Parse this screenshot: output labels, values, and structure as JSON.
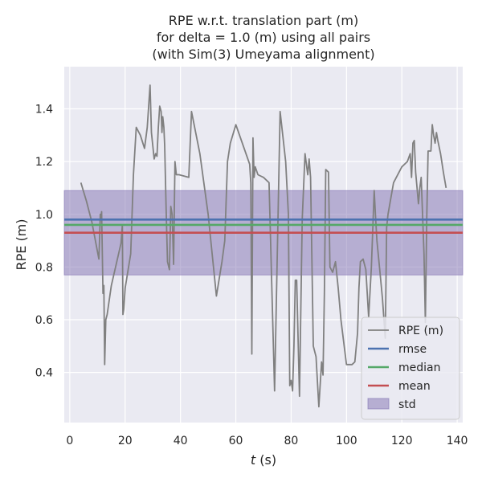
{
  "chart_data": {
    "type": "line",
    "title_lines": [
      "RPE w.r.t. translation part (m)",
      "for delta = 1.0 (m) using all pairs",
      "(with Sim(3) Umeyama alignment)"
    ],
    "xlabel_var": "t",
    "xlabel_unit": " (s)",
    "ylabel": "RPE (m)",
    "xlim": [
      -2,
      142
    ],
    "ylim": [
      0.21,
      1.56
    ],
    "xticks": [
      0,
      20,
      40,
      60,
      80,
      100,
      120,
      140
    ],
    "yticks": [
      0.4,
      0.6,
      0.8,
      1.0,
      1.2,
      1.4
    ],
    "ytick_labels": [
      "0.4",
      "0.6",
      "0.8",
      "1.0",
      "1.2",
      "1.4"
    ],
    "grid": true,
    "legend_position": "lower-right",
    "colors": {
      "background": "#eaeaf2",
      "grid": "#ffffff",
      "rpe": "#808080",
      "rmse": "#4c72b0",
      "median": "#55a868",
      "mean": "#c44e52",
      "std_fill": "#8172b2"
    },
    "stats": {
      "rmse": 0.98,
      "median": 0.96,
      "mean": 0.93,
      "std_low": 0.77,
      "std_high": 1.09
    },
    "legend": [
      {
        "label": "RPE (m)",
        "kind": "line",
        "color_key": "rpe"
      },
      {
        "label": "rmse",
        "kind": "line",
        "color_key": "rmse"
      },
      {
        "label": "median",
        "kind": "line",
        "color_key": "median"
      },
      {
        "label": "mean",
        "kind": "line",
        "color_key": "mean"
      },
      {
        "label": "std",
        "kind": "patch",
        "color_key": "std_fill"
      }
    ],
    "series": [
      {
        "name": "RPE (m)",
        "x": [
          4,
          6,
          8,
          10.5,
          10.8,
          11.0,
          11.2,
          11.5,
          12,
          12.3,
          12.6,
          13,
          13.5,
          15,
          18.5,
          19,
          19.2,
          19.5,
          20,
          22,
          23,
          24,
          25.5,
          27,
          28,
          29,
          29.5,
          30,
          30.5,
          31,
          31.5,
          32,
          32.5,
          33,
          33.3,
          33.6,
          34,
          34.3,
          34.8,
          35.3,
          36,
          36.5,
          37,
          37.5,
          38,
          38.5,
          39,
          39.5,
          43,
          44,
          47,
          50,
          53,
          55,
          56,
          57,
          58,
          60,
          63,
          65,
          65.4,
          65.8,
          66.2,
          66.6,
          67,
          68,
          70,
          72,
          74,
          76,
          78,
          79,
          79.5,
          80,
          80.5,
          81,
          81.5,
          82,
          83,
          84,
          85,
          86,
          86.5,
          87,
          88,
          89,
          90,
          91,
          91.5,
          92,
          92.5,
          93.5,
          94,
          95,
          96,
          97,
          98,
          100,
          102,
          103,
          104,
          104.5,
          105,
          106,
          107,
          108,
          109,
          110,
          110.5,
          111,
          112,
          113,
          114,
          114.5,
          115,
          117,
          120,
          122,
          123,
          123.5,
          124,
          124.5,
          125,
          126,
          126.5,
          127,
          128,
          128.5,
          129,
          129.5,
          130,
          130.5,
          131,
          131.5,
          132,
          132.5,
          133,
          134,
          135,
          136
        ],
        "y": [
          1.12,
          1.05,
          0.97,
          0.83,
          0.92,
          1.0,
          0.98,
          1.01,
          0.7,
          0.73,
          0.43,
          0.6,
          0.62,
          0.73,
          0.89,
          0.96,
          0.62,
          0.64,
          0.72,
          0.85,
          1.15,
          1.33,
          1.3,
          1.25,
          1.33,
          1.49,
          1.31,
          1.26,
          1.21,
          1.23,
          1.22,
          1.33,
          1.41,
          1.39,
          1.31,
          1.37,
          1.33,
          1.26,
          1.02,
          0.82,
          0.79,
          1.03,
          1.0,
          0.81,
          1.2,
          1.15,
          1.15,
          1.15,
          1.14,
          1.39,
          1.23,
          1.0,
          0.69,
          0.82,
          0.9,
          1.2,
          1.27,
          1.34,
          1.25,
          1.19,
          1.12,
          0.47,
          1.29,
          1.14,
          1.18,
          1.15,
          1.14,
          1.12,
          0.33,
          1.39,
          1.2,
          1.0,
          0.35,
          0.37,
          0.33,
          0.5,
          0.75,
          0.75,
          0.31,
          0.98,
          1.23,
          1.15,
          1.21,
          1.14,
          0.5,
          0.46,
          0.27,
          0.44,
          0.39,
          0.7,
          1.17,
          1.16,
          0.8,
          0.78,
          0.82,
          0.72,
          0.6,
          0.43,
          0.43,
          0.44,
          0.55,
          0.72,
          0.82,
          0.83,
          0.79,
          0.61,
          0.8,
          1.09,
          0.99,
          0.9,
          0.79,
          0.68,
          0.53,
          0.95,
          1.0,
          1.12,
          1.18,
          1.2,
          1.23,
          1.14,
          1.27,
          1.28,
          1.16,
          1.04,
          1.1,
          1.14,
          0.85,
          0.59,
          0.98,
          1.24,
          1.24,
          1.24,
          1.34,
          1.3,
          1.27,
          1.31,
          1.28,
          1.23,
          1.16,
          1.1
        ]
      }
    ]
  }
}
